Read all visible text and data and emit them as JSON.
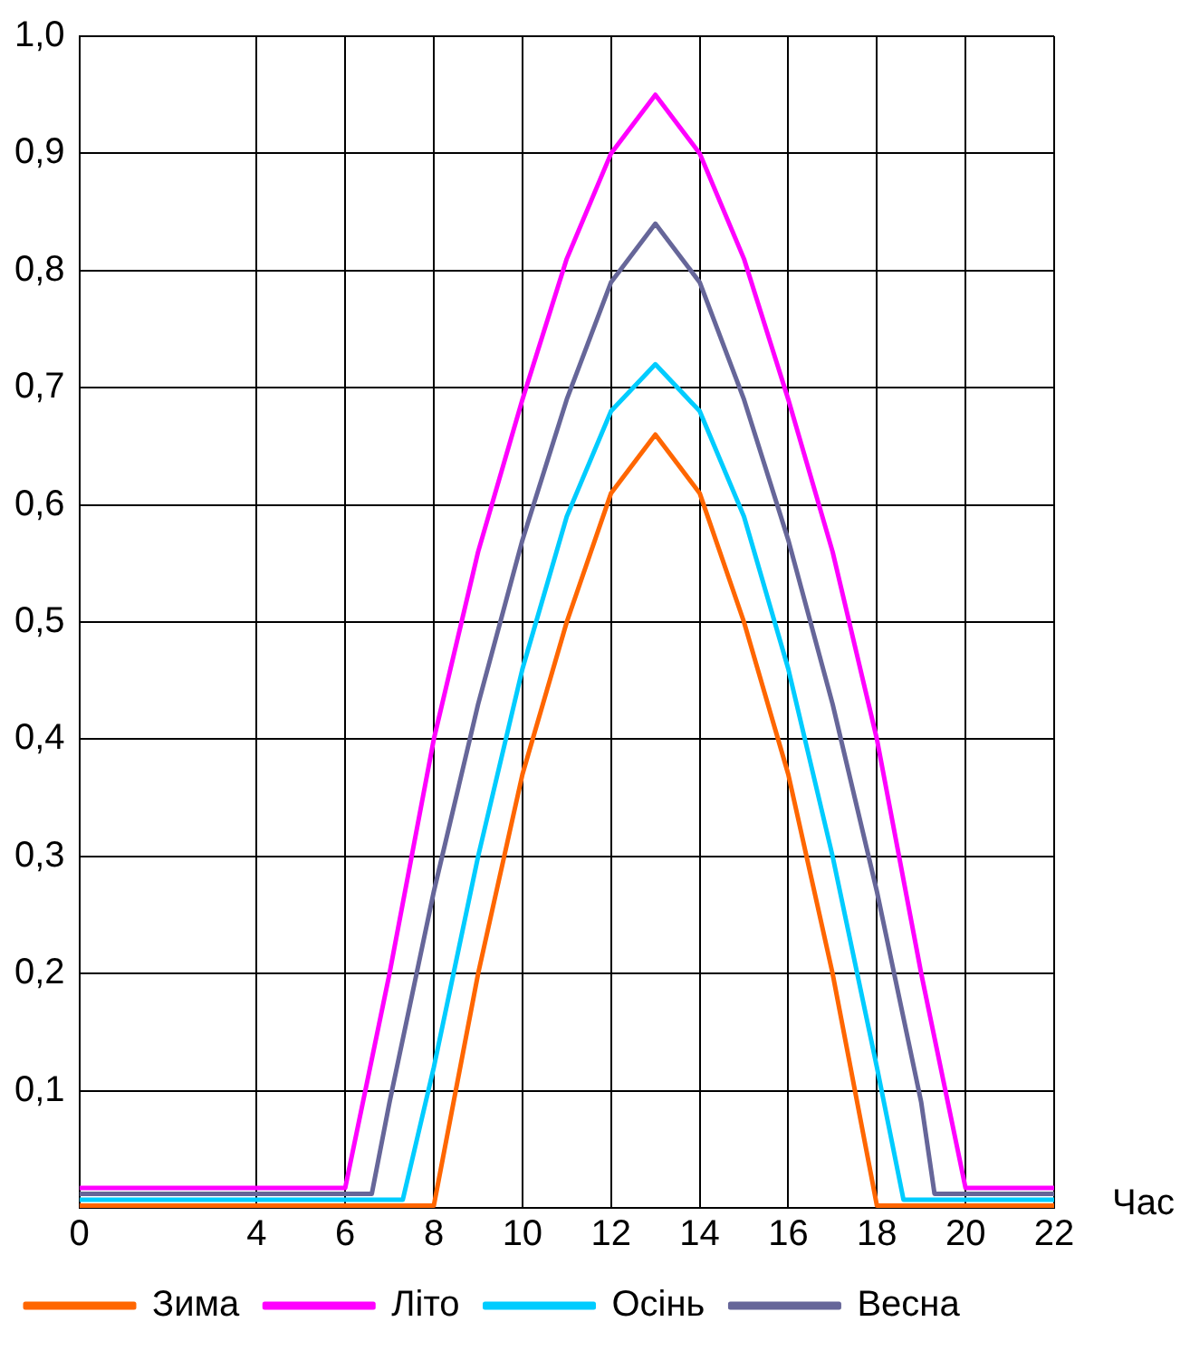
{
  "chart_data": {
    "type": "line",
    "xlabel": "Час",
    "xlim": [
      0,
      22
    ],
    "xticks": [
      0,
      4,
      6,
      8,
      10,
      12,
      14,
      16,
      18,
      20,
      22
    ],
    "ylim": [
      0,
      1
    ],
    "yticks": [
      {
        "value": 0,
        "label": null
      },
      {
        "value": 0.1,
        "label": "0,1"
      },
      {
        "value": 0.2,
        "label": "0,2"
      },
      {
        "value": 0.3,
        "label": "0,3"
      },
      {
        "value": 0.4,
        "label": "0,4"
      },
      {
        "value": 0.5,
        "label": "0,5"
      },
      {
        "value": 0.6,
        "label": "0,6"
      },
      {
        "value": 0.7,
        "label": "0,7"
      },
      {
        "value": 0.8,
        "label": "0,8"
      },
      {
        "value": 0.9,
        "label": "0,9"
      },
      {
        "value": 1,
        "label": "1,0"
      }
    ],
    "grid": true,
    "legend": "bottom",
    "marker": "none",
    "line_style": "solid",
    "series": [
      {
        "name": "Зима",
        "color": "#ff6600",
        "x": [
          0,
          8,
          9,
          10,
          11,
          12,
          13,
          14,
          15,
          16,
          17,
          18,
          22
        ],
        "values": [
          0.002,
          0.002,
          0.2,
          0.37,
          0.5,
          0.61,
          0.66,
          0.61,
          0.5,
          0.37,
          0.2,
          0.002,
          0.002
        ]
      },
      {
        "name": "Літо",
        "color": "#ff00ff",
        "x": [
          0,
          6,
          7,
          8,
          9,
          10,
          11,
          12,
          13,
          14,
          15,
          16,
          17,
          18,
          19,
          20,
          22
        ],
        "values": [
          0.017,
          0.017,
          0.2,
          0.4,
          0.56,
          0.69,
          0.81,
          0.9,
          0.95,
          0.9,
          0.81,
          0.69,
          0.56,
          0.4,
          0.2,
          0.017,
          0.017
        ]
      },
      {
        "name": "Осінь",
        "color": "#00ccff",
        "x": [
          0,
          7.3,
          8,
          9,
          10,
          11,
          12,
          13,
          14,
          15,
          16,
          17,
          18,
          18.6,
          22
        ],
        "values": [
          0.007,
          0.007,
          0.12,
          0.3,
          0.46,
          0.59,
          0.68,
          0.72,
          0.68,
          0.59,
          0.46,
          0.3,
          0.12,
          0.007,
          0.007
        ]
      },
      {
        "name": "Весна",
        "color": "#666699",
        "x": [
          0,
          6.6,
          7,
          8,
          9,
          10,
          11,
          12,
          13,
          14,
          15,
          16,
          17,
          18,
          19,
          19.3,
          22
        ],
        "values": [
          0.012,
          0.012,
          0.09,
          0.27,
          0.43,
          0.57,
          0.69,
          0.79,
          0.84,
          0.79,
          0.69,
          0.57,
          0.43,
          0.27,
          0.09,
          0.012,
          0.012
        ]
      }
    ]
  }
}
